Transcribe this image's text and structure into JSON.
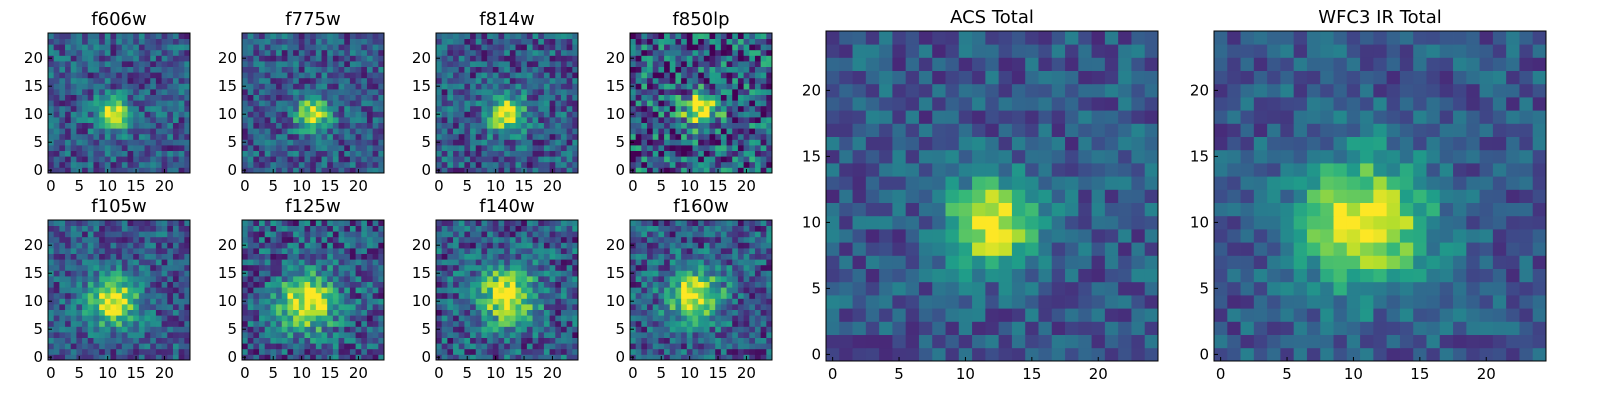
{
  "chart_data": [
    {
      "type": "heatmap",
      "title": "f606w",
      "xticks": [
        "0",
        "5",
        "10",
        "15",
        "20"
      ],
      "yticks": [
        "0",
        "5",
        "10",
        "15",
        "20"
      ],
      "xlim": [
        0,
        24
      ],
      "ylim": [
        0,
        24
      ],
      "colormap": "viridis",
      "source_peak": [
        11,
        10
      ],
      "source_sigma": 2.0,
      "noise": 0.22,
      "seed": 11
    },
    {
      "type": "heatmap",
      "title": "f775w",
      "xticks": [
        "0",
        "5",
        "10",
        "15",
        "20"
      ],
      "yticks": [
        "0",
        "5",
        "10",
        "15",
        "20"
      ],
      "xlim": [
        0,
        24
      ],
      "ylim": [
        0,
        24
      ],
      "colormap": "viridis",
      "source_peak": [
        12,
        10
      ],
      "source_sigma": 2.0,
      "noise": 0.22,
      "seed": 23
    },
    {
      "type": "heatmap",
      "title": "f814w",
      "xticks": [
        "0",
        "5",
        "10",
        "15",
        "20"
      ],
      "yticks": [
        "0",
        "5",
        "10",
        "15",
        "20"
      ],
      "xlim": [
        0,
        24
      ],
      "ylim": [
        0,
        24
      ],
      "colormap": "viridis",
      "source_peak": [
        12,
        10
      ],
      "source_sigma": 2.2,
      "noise": 0.24,
      "seed": 37
    },
    {
      "type": "heatmap",
      "title": "f850lp",
      "xticks": [
        "0",
        "5",
        "10",
        "15",
        "20"
      ],
      "yticks": [
        "0",
        "5",
        "10",
        "15",
        "20"
      ],
      "xlim": [
        0,
        24
      ],
      "ylim": [
        0,
        24
      ],
      "colormap": "viridis",
      "source_peak": [
        12,
        11
      ],
      "source_sigma": 2.2,
      "noise": 0.38,
      "seed": 41
    },
    {
      "type": "heatmap",
      "title": "f105w",
      "xticks": [
        "0",
        "5",
        "10",
        "15",
        "20"
      ],
      "yticks": [
        "0",
        "5",
        "10",
        "15",
        "20"
      ],
      "xlim": [
        0,
        24
      ],
      "ylim": [
        0,
        24
      ],
      "colormap": "viridis",
      "source_peak": [
        11,
        10
      ],
      "source_sigma": 3.0,
      "noise": 0.22,
      "seed": 53
    },
    {
      "type": "heatmap",
      "title": "f125w",
      "xticks": [
        "0",
        "5",
        "10",
        "15",
        "20"
      ],
      "yticks": [
        "0",
        "5",
        "10",
        "15",
        "20"
      ],
      "xlim": [
        0,
        24
      ],
      "ylim": [
        0,
        24
      ],
      "colormap": "viridis",
      "source_peak": [
        11,
        10
      ],
      "source_sigma": 3.5,
      "noise": 0.26,
      "seed": 67
    },
    {
      "type": "heatmap",
      "title": "f140w",
      "xticks": [
        "0",
        "5",
        "10",
        "15",
        "20"
      ],
      "yticks": [
        "0",
        "5",
        "10",
        "15",
        "20"
      ],
      "xlim": [
        0,
        24
      ],
      "ylim": [
        0,
        24
      ],
      "colormap": "viridis",
      "source_peak": [
        12,
        11
      ],
      "source_sigma": 3.5,
      "noise": 0.26,
      "seed": 71
    },
    {
      "type": "heatmap",
      "title": "f160w",
      "xticks": [
        "0",
        "5",
        "10",
        "15",
        "20"
      ],
      "yticks": [
        "0",
        "5",
        "10",
        "15",
        "20"
      ],
      "xlim": [
        0,
        24
      ],
      "ylim": [
        0,
        24
      ],
      "colormap": "viridis",
      "source_peak": [
        11,
        11
      ],
      "source_sigma": 3.2,
      "noise": 0.25,
      "seed": 83
    },
    {
      "type": "heatmap",
      "title": "ACS Total",
      "xticks": [
        "0",
        "5",
        "10",
        "15",
        "20"
      ],
      "yticks": [
        "0",
        "5",
        "10",
        "15",
        "20"
      ],
      "xlim": [
        0,
        24
      ],
      "ylim": [
        0,
        24
      ],
      "colormap": "viridis",
      "source_peak": [
        12,
        10
      ],
      "source_sigma": 2.3,
      "noise": 0.17,
      "seed": 97
    },
    {
      "type": "heatmap",
      "title": "WFC3 IR Total",
      "xticks": [
        "0",
        "5",
        "10",
        "15",
        "20"
      ],
      "yticks": [
        "0",
        "5",
        "10",
        "15",
        "20"
      ],
      "xlim": [
        0,
        24
      ],
      "ylim": [
        0,
        24
      ],
      "colormap": "viridis",
      "source_peak": [
        11,
        10
      ],
      "source_sigma": 3.4,
      "noise": 0.16,
      "seed": 101
    }
  ]
}
